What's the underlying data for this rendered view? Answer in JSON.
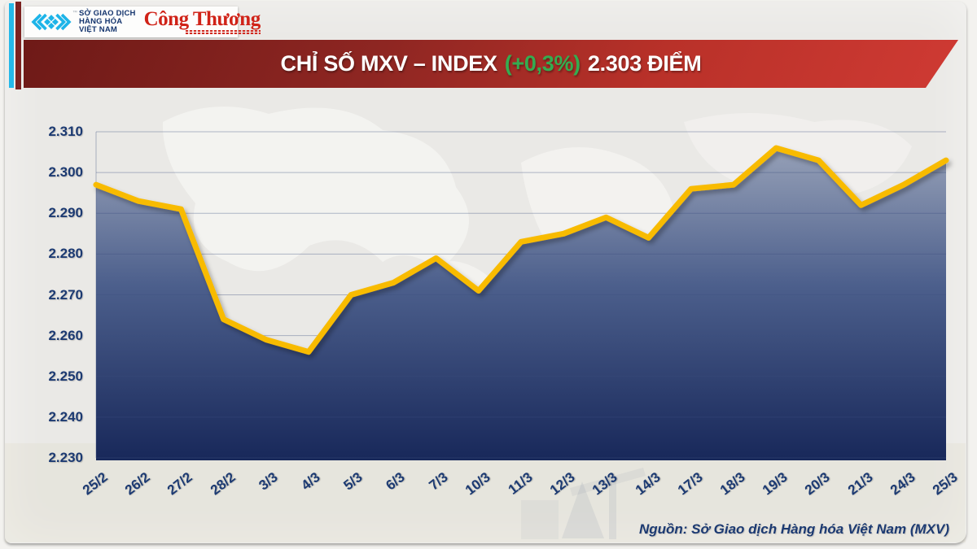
{
  "logo": {
    "mxv_name_lines": [
      "SỞ GIAO DỊCH",
      "HÀNG HÓA",
      "VIỆT NAM"
    ],
    "trademark": "™",
    "newspaper": "Công Thương"
  },
  "banner": {
    "title_main": "CHỈ SỐ MXV – INDEX",
    "title_change": "(+0,3%)",
    "title_value": "2.303 ĐIỂM"
  },
  "chart_data": {
    "type": "area",
    "title": "CHỈ SỐ MXV – INDEX (+0,3%) 2.303 ĐIỂM",
    "units": "điểm",
    "categories": [
      "25/2",
      "26/2",
      "27/2",
      "28/2",
      "3/3",
      "4/3",
      "5/3",
      "6/3",
      "7/3",
      "10/3",
      "11/3",
      "12/3",
      "13/3",
      "14/3",
      "17/3",
      "18/3",
      "19/3",
      "20/3",
      "21/3",
      "24/3",
      "25/3"
    ],
    "values": [
      2297,
      2293,
      2291,
      2264,
      2259,
      2256,
      2270,
      2273,
      2279,
      2271,
      2283,
      2285,
      2289,
      2284,
      2296,
      2297,
      2306,
      2303,
      2292,
      2297,
      2303
    ],
    "ylim": [
      2230,
      2310
    ],
    "ytick_values": [
      2310,
      2300,
      2290,
      2280,
      2270,
      2260,
      2250,
      2240,
      2230
    ],
    "ytick_labels": [
      "2.310",
      "2.300",
      "2.290",
      "2.280",
      "2.270",
      "2.260",
      "2.250",
      "2.240",
      "2.230"
    ],
    "xlabel": "",
    "ylabel": "",
    "grid": true,
    "legend": false,
    "line_color": "#f8bb06",
    "fill_top_color": "#99a3b9",
    "fill_mid_color": "#4c5f8c",
    "fill_bottom_color": "#18285a",
    "grid_color": "rgba(60,80,125,0.38)",
    "label_color": "#1c3a72"
  },
  "source_note": "Nguồn: Sở Giao dịch Hàng hóa Việt Nam (MXV)",
  "colors": {
    "banner_red_dark": "#6e1a17",
    "banner_red_light": "#cf3a33",
    "change_green": "#35ac50",
    "accent_cyan": "#25b9e9",
    "accent_maroon": "#7b2220",
    "navy_text": "#1c3a72",
    "newspaper_red": "#d02318",
    "background": "#eae9e6"
  }
}
